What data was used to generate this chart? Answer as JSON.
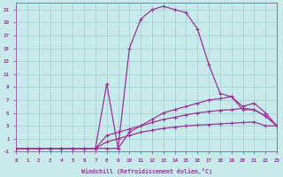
{
  "xlabel": "Windchill (Refroidissement éolien,°C)",
  "xlim": [
    0,
    23
  ],
  "ylim": [
    -1,
    22
  ],
  "xticks": [
    0,
    1,
    2,
    3,
    4,
    5,
    6,
    7,
    8,
    9,
    10,
    11,
    12,
    13,
    14,
    15,
    16,
    17,
    18,
    19,
    20,
    21,
    22,
    23
  ],
  "yticks": [
    -1,
    1,
    3,
    5,
    7,
    9,
    11,
    13,
    15,
    17,
    19,
    21
  ],
  "bg_color": "#c8eaea",
  "line_color": "#993399",
  "grid_color": "#a0cccc",
  "curves": [
    {
      "x": [
        0,
        1,
        2,
        3,
        4,
        5,
        6,
        7,
        8,
        9,
        10,
        11,
        12,
        13,
        14,
        15,
        16,
        17,
        18,
        19,
        20,
        21,
        22,
        23
      ],
      "y": [
        -0.5,
        -0.5,
        -0.5,
        -0.5,
        -0.5,
        -0.5,
        -0.5,
        -0.5,
        -0.5,
        -0.5,
        15.0,
        19.5,
        21.0,
        21.5,
        21.0,
        20.5,
        18.0,
        12.5,
        8.0,
        7.5,
        5.5,
        5.5,
        4.5,
        3.0
      ]
    },
    {
      "x": [
        0,
        1,
        2,
        3,
        4,
        5,
        6,
        7,
        8,
        9,
        10,
        11,
        12,
        13,
        14,
        15,
        16,
        17,
        18,
        19,
        20,
        21,
        22,
        23
      ],
      "y": [
        -0.5,
        -0.5,
        -0.5,
        -0.5,
        -0.5,
        -0.5,
        -0.5,
        -0.5,
        9.5,
        -0.5,
        2.0,
        3.0,
        4.0,
        5.0,
        5.5,
        6.0,
        6.5,
        7.0,
        7.2,
        7.5,
        6.0,
        6.5,
        5.0,
        3.0
      ]
    },
    {
      "x": [
        0,
        1,
        2,
        3,
        4,
        5,
        6,
        7,
        8,
        9,
        10,
        11,
        12,
        13,
        14,
        15,
        16,
        17,
        18,
        19,
        20,
        21,
        22,
        23
      ],
      "y": [
        -0.5,
        -0.5,
        -0.5,
        -0.5,
        -0.5,
        -0.5,
        -0.5,
        -0.5,
        1.5,
        2.0,
        2.5,
        3.0,
        3.5,
        4.0,
        4.3,
        4.7,
        5.0,
        5.2,
        5.4,
        5.5,
        5.7,
        5.5,
        4.5,
        3.0
      ]
    },
    {
      "x": [
        0,
        1,
        2,
        3,
        4,
        5,
        6,
        7,
        8,
        9,
        10,
        11,
        12,
        13,
        14,
        15,
        16,
        17,
        18,
        19,
        20,
        21,
        22,
        23
      ],
      "y": [
        -0.5,
        -0.5,
        -0.5,
        -0.5,
        -0.5,
        -0.5,
        -0.5,
        -0.5,
        0.5,
        1.0,
        1.5,
        2.0,
        2.3,
        2.6,
        2.8,
        3.0,
        3.1,
        3.2,
        3.3,
        3.4,
        3.5,
        3.6,
        3.0,
        3.0
      ]
    }
  ]
}
